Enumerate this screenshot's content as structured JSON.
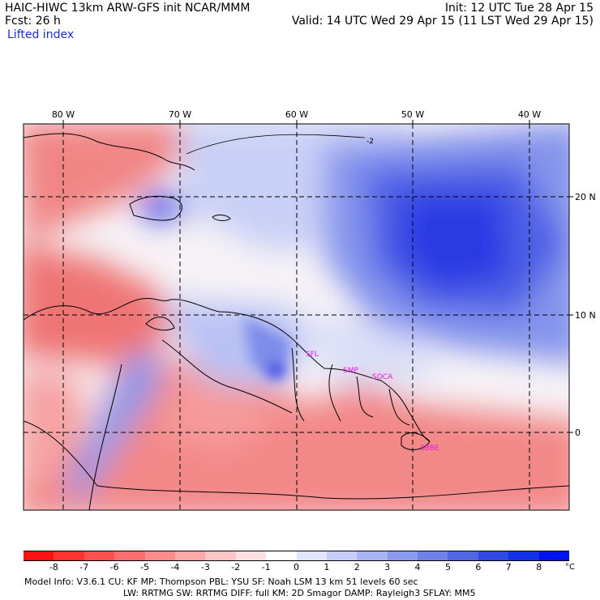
{
  "header": {
    "title": "HAIC-HIWC 13km ARW-GFS init   NCAR/MMM",
    "forecast": "Fcst:    26 h",
    "field": "Lifted index",
    "init": "Init: 12 UTC Tue 28 Apr 15",
    "valid": "Valid: 14 UTC Wed 29 Apr 15 (11 LST Wed 29 Apr 15)"
  },
  "map": {
    "longitude_labels": [
      "80 W",
      "70 W",
      "60 W",
      "50 W",
      "40 W"
    ],
    "latitude_labels": [
      "20 N",
      "10 N",
      "0"
    ],
    "contour_label": "-2",
    "station_labels": [
      "SFL",
      "SMP",
      "SOCA",
      "SBBE"
    ],
    "colors": {
      "strong_negative": "#e83a3a",
      "negative": "#f48a8a",
      "neutral": "#f6f2f6",
      "positive": "#b9c4f3",
      "strong_positive": "#1a24e6",
      "station_label": "#e020e0"
    }
  },
  "colorbar": {
    "unit": "°C",
    "labels": [
      "-8",
      "-7",
      "-6",
      "-5",
      "-4",
      "-3",
      "-2",
      "-1",
      "0",
      "1",
      "2",
      "3",
      "4",
      "5",
      "6",
      "7",
      "8"
    ],
    "colors": [
      "#ff1010",
      "#ff3232",
      "#ff5050",
      "#ff6e6e",
      "#ff8c8c",
      "#ffa8a8",
      "#ffc4c4",
      "#ffe0e0",
      "#ffffff",
      "#e0e4fc",
      "#c6cdf7",
      "#a9b4f2",
      "#8c9aee",
      "#6f80e9",
      "#5266e4",
      "#3048e4",
      "#1430e8",
      "#0010ee"
    ]
  },
  "footer": {
    "line1": "Model Info: V3.6.1     CU: KF      MP: Thompson       PBL: YSU          SF: Noah LSM       13 km    51 levels    60 sec",
    "line2": "LW: RRTMG    SW: RRTMG   DIFF: full     KM: 2D Smagor  DAMP: Rayleigh3   SFLAY: MM5"
  }
}
